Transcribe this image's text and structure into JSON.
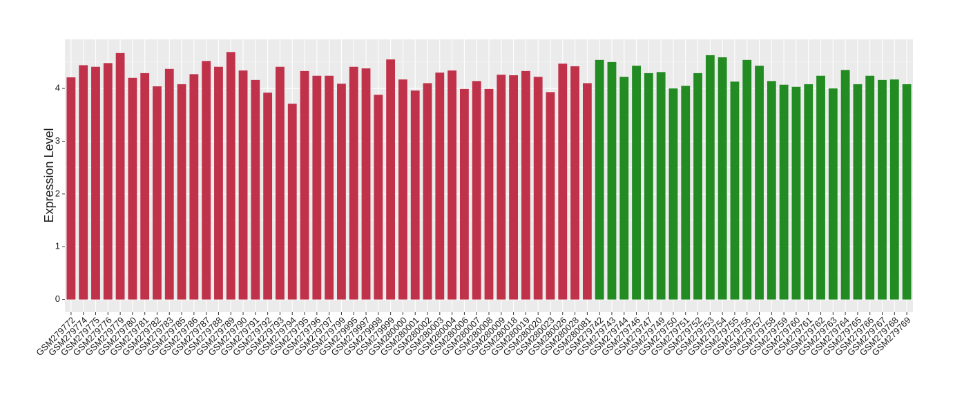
{
  "chart_data": {
    "type": "bar",
    "y_label": "Expression Level",
    "categories": [
      "GSM279772",
      "GSM279774",
      "GSM279775",
      "GSM279776",
      "GSM279779",
      "GSM279780",
      "GSM279781",
      "GSM279782",
      "GSM279783",
      "GSM279785",
      "GSM279786",
      "GSM279787",
      "GSM279788",
      "GSM279789",
      "GSM279790",
      "GSM279791",
      "GSM279792",
      "GSM279793",
      "GSM279794",
      "GSM279795",
      "GSM279796",
      "GSM279797",
      "GSM279799",
      "GSM279995",
      "GSM279997",
      "GSM279998",
      "GSM279999",
      "GSM280000",
      "GSM280001",
      "GSM280002",
      "GSM280003",
      "GSM280004",
      "GSM280006",
      "GSM280007",
      "GSM280008",
      "GSM280009",
      "GSM280018",
      "GSM280019",
      "GSM280020",
      "GSM280023",
      "GSM280026",
      "GSM280028",
      "GSM280081",
      "GSM279742",
      "GSM279743",
      "GSM279744",
      "GSM279746",
      "GSM279747",
      "GSM279749",
      "GSM279750",
      "GSM279751",
      "GSM279752",
      "GSM279753",
      "GSM279754",
      "GSM279755",
      "GSM279756",
      "GSM279757",
      "GSM279758",
      "GSM279759",
      "GSM279760",
      "GSM279761",
      "GSM279762",
      "GSM279763",
      "GSM279764",
      "GSM279765",
      "GSM279766",
      "GSM279767",
      "GSM279768",
      "GSM279769"
    ],
    "values": [
      4.21,
      4.44,
      4.41,
      4.48,
      4.67,
      4.2,
      4.29,
      4.04,
      4.37,
      4.08,
      4.27,
      4.52,
      4.41,
      4.69,
      4.34,
      4.16,
      3.92,
      4.41,
      3.71,
      4.33,
      4.24,
      4.24,
      4.09,
      4.41,
      4.38,
      3.88,
      4.55,
      4.17,
      3.96,
      4.1,
      4.3,
      4.34,
      3.99,
      4.14,
      3.99,
      4.26,
      4.25,
      4.33,
      4.22,
      3.93,
      4.47,
      4.42,
      4.1,
      4.54,
      4.5,
      4.22,
      4.43,
      4.29,
      4.31,
      4.0,
      4.05,
      4.29,
      4.63,
      4.59,
      4.13,
      4.54,
      4.43,
      4.14,
      4.07,
      4.03,
      4.08,
      4.24,
      4.0,
      4.35,
      4.08,
      4.24,
      4.16,
      4.17,
      4.08
    ],
    "colors": [
      "#c0314a",
      "#c0314a",
      "#c0314a",
      "#c0314a",
      "#c0314a",
      "#c0314a",
      "#c0314a",
      "#c0314a",
      "#c0314a",
      "#c0314a",
      "#c0314a",
      "#c0314a",
      "#c0314a",
      "#c0314a",
      "#c0314a",
      "#c0314a",
      "#c0314a",
      "#c0314a",
      "#c0314a",
      "#c0314a",
      "#c0314a",
      "#c0314a",
      "#c0314a",
      "#c0314a",
      "#c0314a",
      "#c0314a",
      "#c0314a",
      "#c0314a",
      "#c0314a",
      "#c0314a",
      "#c0314a",
      "#c0314a",
      "#c0314a",
      "#c0314a",
      "#c0314a",
      "#c0314a",
      "#c0314a",
      "#c0314a",
      "#c0314a",
      "#c0314a",
      "#c0314a",
      "#c0314a",
      "#c0314a",
      "#228b22",
      "#228b22",
      "#228b22",
      "#228b22",
      "#228b22",
      "#228b22",
      "#228b22",
      "#228b22",
      "#228b22",
      "#228b22",
      "#228b22",
      "#228b22",
      "#228b22",
      "#228b22",
      "#228b22",
      "#228b22",
      "#228b22",
      "#228b22",
      "#228b22",
      "#228b22",
      "#228b22",
      "#228b22",
      "#228b22",
      "#228b22",
      "#228b22",
      "#228b22"
    ],
    "ylim": [
      -0.24,
      4.93
    ],
    "yticks": [
      0,
      1,
      2,
      3,
      4
    ],
    "grid": true
  }
}
